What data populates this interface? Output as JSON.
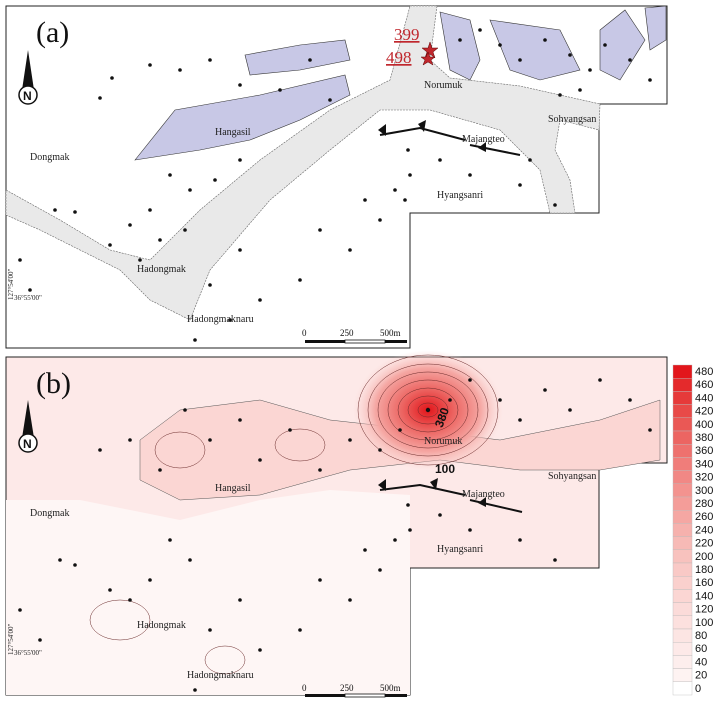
{
  "panel_a": {
    "label": "(a)",
    "places": {
      "dongmak": "Dongmak",
      "hangasil": "Hangasil",
      "norumuk": "Norumuk",
      "sohyangsan": "Sohyangsan",
      "majangteo": "Majangteo",
      "hyangsanri": "Hyangsanri",
      "hadongmak": "Hadongmak",
      "hadongmaknaru": "Hadongmaknaru"
    },
    "coords": {
      "lon": "127°54'00\"",
      "lat": "36°55'00\""
    },
    "sample_values": [
      "399",
      "498"
    ],
    "scale": {
      "zero": "0",
      "mid": "250",
      "end": "500m"
    }
  },
  "panel_b": {
    "label": "(b)",
    "places": {
      "dongmak": "Dongmak",
      "hangasil": "Hangasil",
      "norumuk": "Norumuk",
      "sohyangsan": "Sohyangsan",
      "majangteo": "Majangteo",
      "hyangsanri": "Hyangsanri",
      "hadongmak": "Hadongmak",
      "hadongmaknaru": "Hadongmaknaru"
    },
    "coords": {
      "lon": "127°54'00\"",
      "lat": "36°55'00\""
    },
    "contour_labels": [
      "380",
      "100"
    ],
    "scale": {
      "zero": "0",
      "mid": "250",
      "end": "500m"
    }
  },
  "legend": {
    "values": [
      "480",
      "460",
      "440",
      "420",
      "400",
      "380",
      "360",
      "340",
      "320",
      "300",
      "280",
      "260",
      "240",
      "220",
      "200",
      "180",
      "160",
      "140",
      "120",
      "100",
      "80",
      "60",
      "40",
      "20",
      "0"
    ],
    "colors": [
      "#e2161b",
      "#e42a2c",
      "#e63a3a",
      "#e84a48",
      "#ea5855",
      "#ec6562",
      "#ee716e",
      "#f07d7a",
      "#f18885",
      "#f3938f",
      "#f49d99",
      "#f5a7a3",
      "#f6b1ad",
      "#f7bab6",
      "#f8c2be",
      "#f9c9c6",
      "#fad0cd",
      "#fbd6d3",
      "#fbdbd9",
      "#fce0de",
      "#fce5e3",
      "#fde9e8",
      "#fdeeed",
      "#fef3f2",
      "#ffffff"
    ]
  },
  "colors": {
    "river": "#e9e9e9",
    "lavender": "#c8c8e6",
    "star": "#c0272d"
  }
}
